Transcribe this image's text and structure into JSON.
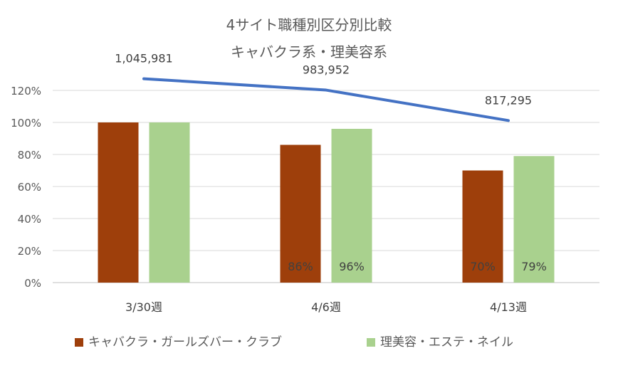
{
  "chart_data": {
    "type": "bar",
    "title": "4サイト職種別区分別比較",
    "subtitle": "キャバクラ系・理美容系",
    "categories": [
      "3/30週",
      "4/6週",
      "4/13週"
    ],
    "ylim": [
      0,
      1.2
    ],
    "y_ticks": [
      "0%",
      "20%",
      "40%",
      "60%",
      "80%",
      "100%",
      "120%"
    ],
    "grid": true,
    "legend_position": "bottom",
    "series": [
      {
        "name": "キャバクラ・ガールズバー・クラブ",
        "values": [
          1.0,
          0.86,
          0.7
        ],
        "labels": [
          "",
          "86%",
          "70%"
        ],
        "color": "#9E3F0B"
      },
      {
        "name": "理美容・エステ・ネイル",
        "values": [
          1.0,
          0.96,
          0.79
        ],
        "labels": [
          "",
          "96%",
          "79%"
        ],
        "color": "#A9D18E"
      }
    ],
    "line_series": {
      "values": [
        1045981,
        983952,
        817295
      ],
      "labels": [
        "1,045,981",
        "983,952",
        "817,295"
      ],
      "color": "#4472C4"
    }
  }
}
